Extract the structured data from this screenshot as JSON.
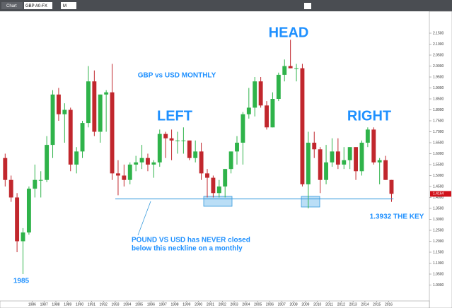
{
  "toolbar": {
    "tab": "Chart",
    "symbol": "GBP A0-FX",
    "interval": "M"
  },
  "chart_data": {
    "type": "candlestick",
    "title": "GBP vs USD MONTHLY",
    "annotations": {
      "left": "LEFT",
      "head": "HEAD",
      "right": "RIGHT",
      "key": "1.3932 THE KEY",
      "note": [
        "POUND VS USD has NEVER closed",
        "below this neckline on a monthly"
      ],
      "low_year": "1985"
    },
    "up_color": "#2fb34a",
    "down_color": "#c1272d",
    "neckline": 1.3932,
    "neckline_x": [
      1993.0,
      2016.4
    ],
    "last_price": 1.4164,
    "x": [
      1983.5,
      1984.0,
      1984.5,
      1985.0,
      1985.5,
      1986.0,
      1986.5,
      1987.0,
      1987.5,
      1988.0,
      1988.5,
      1989.0,
      1989.5,
      1990.0,
      1990.5,
      1991.0,
      1991.5,
      1992.0,
      1992.5,
      1993.0,
      1993.5,
      1994.0,
      1994.5,
      1995.0,
      1995.5,
      1996.0,
      1996.5,
      1997.0,
      1997.5,
      1998.0,
      1998.5,
      1999.0,
      1999.5,
      2000.0,
      2000.5,
      2001.0,
      2001.5,
      2002.0,
      2002.5,
      2003.0,
      2003.5,
      2004.0,
      2004.5,
      2005.0,
      2005.5,
      2006.0,
      2006.5,
      2007.0,
      2007.5,
      2008.0,
      2008.5,
      2009.0,
      2009.5,
      2010.0,
      2010.5,
      2011.0,
      2011.5,
      2012.0,
      2012.5,
      2013.0,
      2013.5,
      2014.0,
      2014.5,
      2015.0,
      2015.5,
      2016.0
    ],
    "open": [
      1.58,
      1.48,
      1.4,
      1.2,
      1.24,
      1.44,
      1.48,
      1.48,
      1.64,
      1.87,
      1.78,
      1.8,
      1.55,
      1.61,
      1.74,
      1.93,
      1.7,
      1.87,
      1.88,
      1.51,
      1.5,
      1.48,
      1.55,
      1.56,
      1.58,
      1.55,
      1.56,
      1.69,
      1.67,
      1.66,
      1.66,
      1.66,
      1.58,
      1.61,
      1.51,
      1.49,
      1.42,
      1.45,
      1.53,
      1.61,
      1.65,
      1.78,
      1.81,
      1.93,
      1.82,
      1.72,
      1.85,
      1.96,
      2.0,
      1.99,
      1.99,
      1.46,
      1.65,
      1.62,
      1.48,
      1.56,
      1.61,
      1.55,
      1.57,
      1.63,
      1.52,
      1.65,
      1.71,
      1.56,
      1.57,
      1.48
    ],
    "high": [
      1.6,
      1.5,
      1.42,
      1.26,
      1.45,
      1.55,
      1.52,
      1.68,
      1.89,
      1.9,
      1.83,
      1.81,
      1.63,
      1.75,
      2.0,
      1.98,
      1.87,
      1.89,
      2.01,
      1.57,
      1.55,
      1.56,
      1.59,
      1.64,
      1.6,
      1.57,
      1.71,
      1.7,
      1.71,
      1.7,
      1.72,
      1.66,
      1.66,
      1.65,
      1.53,
      1.5,
      1.48,
      1.53,
      1.61,
      1.68,
      1.79,
      1.9,
      1.95,
      1.95,
      1.84,
      1.88,
      1.97,
      2.03,
      2.12,
      2.01,
      2.01,
      1.7,
      1.7,
      1.63,
      1.64,
      1.67,
      1.67,
      1.63,
      1.63,
      1.63,
      1.66,
      1.72,
      1.72,
      1.58,
      1.59,
      1.48
    ],
    "low": [
      1.45,
      1.38,
      1.15,
      1.05,
      1.23,
      1.4,
      1.4,
      1.47,
      1.58,
      1.75,
      1.65,
      1.52,
      1.51,
      1.58,
      1.72,
      1.68,
      1.65,
      1.7,
      1.48,
      1.41,
      1.45,
      1.46,
      1.52,
      1.53,
      1.52,
      1.49,
      1.54,
      1.58,
      1.57,
      1.6,
      1.6,
      1.57,
      1.56,
      1.48,
      1.4,
      1.4,
      1.4,
      1.4,
      1.51,
      1.55,
      1.55,
      1.76,
      1.77,
      1.81,
      1.71,
      1.72,
      1.84,
      1.93,
      1.99,
      1.93,
      1.45,
      1.35,
      1.58,
      1.42,
      1.46,
      1.54,
      1.53,
      1.53,
      1.53,
      1.48,
      1.5,
      1.63,
      1.55,
      1.46,
      1.48,
      1.38
    ],
    "close": [
      1.48,
      1.4,
      1.2,
      1.24,
      1.44,
      1.48,
      1.48,
      1.64,
      1.87,
      1.78,
      1.8,
      1.55,
      1.61,
      1.74,
      1.93,
      1.7,
      1.87,
      1.88,
      1.51,
      1.5,
      1.48,
      1.55,
      1.56,
      1.58,
      1.55,
      1.56,
      1.69,
      1.67,
      1.66,
      1.66,
      1.66,
      1.58,
      1.61,
      1.51,
      1.49,
      1.42,
      1.45,
      1.53,
      1.61,
      1.65,
      1.78,
      1.81,
      1.93,
      1.82,
      1.72,
      1.85,
      1.96,
      2.0,
      1.99,
      1.99,
      1.46,
      1.65,
      1.62,
      1.48,
      1.56,
      1.61,
      1.55,
      1.57,
      1.63,
      1.52,
      1.65,
      1.71,
      1.56,
      1.57,
      1.48,
      1.4164
    ],
    "xlim": [
      1983.3,
      2019.3
    ],
    "xticks": [
      1986,
      1987,
      1988,
      1989,
      1990,
      1991,
      1992,
      1993,
      1994,
      1995,
      1996,
      1997,
      1998,
      1999,
      2000,
      2001,
      2002,
      2003,
      2004,
      2005,
      2006,
      2007,
      2008,
      2009,
      2010,
      2011,
      2012,
      2013,
      2014,
      2015,
      2016
    ],
    "ylim": [
      0.95,
      2.2
    ],
    "yticks": [
      {
        "value": 1.0,
        "label": "1.0000"
      },
      {
        "value": 1.05,
        "label": "1.0500"
      },
      {
        "value": 1.1,
        "label": "1.1000"
      },
      {
        "value": 1.15,
        "label": "1.1500"
      },
      {
        "value": 1.2,
        "label": "1.2000"
      },
      {
        "value": 1.25,
        "label": "1.2500"
      },
      {
        "value": 1.3,
        "label": "1.3000"
      },
      {
        "value": 1.35,
        "label": "1.3500"
      },
      {
        "value": 1.4,
        "label": "1.4000"
      },
      {
        "value": 1.45,
        "label": "1.4500"
      },
      {
        "value": 1.5,
        "label": "1.5000"
      },
      {
        "value": 1.55,
        "label": "1.5500"
      },
      {
        "value": 1.6,
        "label": "1.6000"
      },
      {
        "value": 1.65,
        "label": "1.6500"
      },
      {
        "value": 1.7,
        "label": "1.7000"
      },
      {
        "value": 1.75,
        "label": "1.7500"
      },
      {
        "value": 1.8,
        "label": "1.8000"
      },
      {
        "value": 1.85,
        "label": "1.8500"
      },
      {
        "value": 1.9,
        "label": "1.9000"
      },
      {
        "value": 1.95,
        "label": "1.9500"
      },
      {
        "value": 2.0,
        "label": "2.0000"
      },
      {
        "value": 2.05,
        "label": "2.0500"
      },
      {
        "value": 2.1,
        "label": "2.1000"
      },
      {
        "value": 2.15,
        "label": "2.1500"
      }
    ]
  }
}
